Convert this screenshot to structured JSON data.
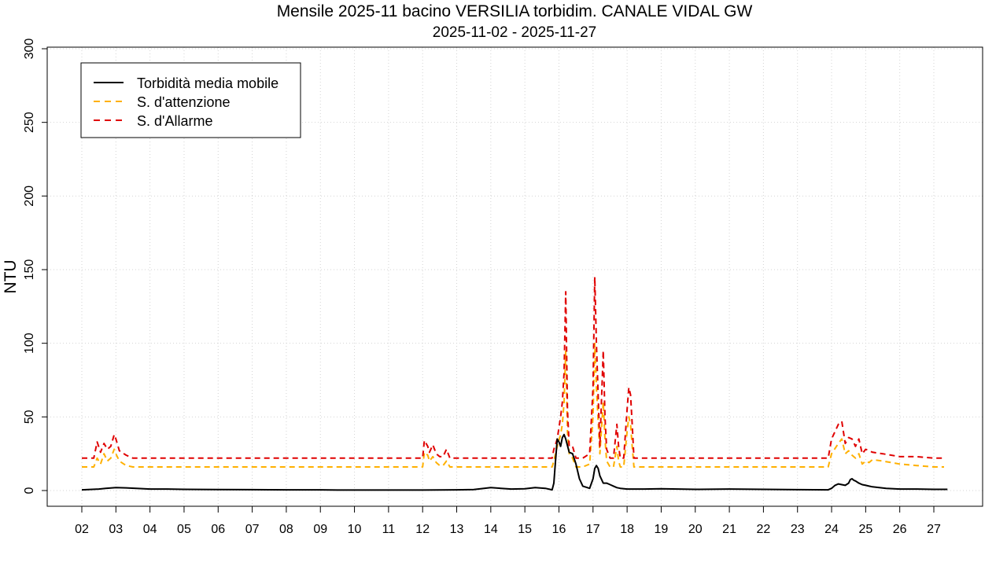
{
  "chart_data": {
    "type": "line",
    "title": "Mensile 2025-11 bacino VERSILIA torbidim. CANALE VIDAL GW",
    "subtitle": "2025-11-02 - 2025-11-27",
    "xlabel": "",
    "ylabel": "NTU",
    "ylim": [
      0,
      300
    ],
    "yticks": [
      0,
      50,
      100,
      150,
      200,
      250,
      300
    ],
    "x_unit": "day of month (2025-11)",
    "xlim": [
      2,
      27.3
    ],
    "xticks": [
      2,
      3,
      4,
      5,
      6,
      7,
      8,
      9,
      10,
      11,
      12,
      13,
      14,
      15,
      16,
      17,
      18,
      19,
      20,
      21,
      22,
      23,
      24,
      25,
      26,
      27
    ],
    "xtick_labels": [
      "02",
      "03",
      "04",
      "05",
      "06",
      "07",
      "08",
      "09",
      "10",
      "11",
      "12",
      "13",
      "14",
      "15",
      "16",
      "17",
      "18",
      "19",
      "20",
      "21",
      "22",
      "23",
      "24",
      "25",
      "26",
      "27"
    ],
    "grid": true,
    "legend_position": "top-left",
    "series": [
      {
        "name": "Torbidità media mobile",
        "color": "#000000",
        "dash": "solid",
        "x": [
          2.0,
          2.5,
          2.7,
          3.0,
          3.3,
          3.6,
          4.0,
          4.5,
          5.0,
          6.0,
          7.0,
          8.0,
          9.0,
          9.5,
          10.0,
          11.0,
          12.0,
          12.5,
          13.0,
          13.5,
          13.8,
          14.0,
          14.3,
          14.6,
          15.0,
          15.3,
          15.6,
          15.8,
          15.85,
          15.9,
          15.95,
          16.0,
          16.05,
          16.1,
          16.15,
          16.2,
          16.3,
          16.4,
          16.5,
          16.6,
          16.7,
          16.9,
          17.0,
          17.05,
          17.1,
          17.15,
          17.2,
          17.3,
          17.4,
          17.5,
          17.6,
          17.7,
          17.8,
          18.0,
          18.5,
          19.0,
          19.5,
          20.0,
          21.0,
          22.0,
          23.0,
          23.9,
          24.0,
          24.1,
          24.2,
          24.3,
          24.4,
          24.5,
          24.55,
          24.6,
          24.65,
          24.7,
          24.8,
          24.9,
          25.0,
          25.1,
          25.2,
          25.4,
          25.6,
          26.0,
          26.5,
          27.0,
          27.4
        ],
        "y": [
          0.5,
          1.0,
          1.5,
          2.0,
          1.8,
          1.5,
          1.0,
          1.0,
          0.8,
          0.7,
          0.6,
          0.5,
          0.5,
          0.3,
          0.3,
          0.3,
          0.3,
          0.4,
          0.5,
          0.7,
          1.5,
          2.0,
          1.5,
          1.0,
          1.2,
          2.0,
          1.5,
          0.5,
          5.0,
          20.0,
          35.0,
          33.0,
          30.0,
          36.0,
          38.0,
          35.0,
          26.0,
          25.0,
          18.0,
          8.0,
          3.0,
          1.5,
          8.0,
          15.0,
          17.0,
          15.0,
          10.0,
          5.0,
          5.0,
          4.0,
          3.0,
          2.0,
          1.5,
          1.0,
          1.0,
          1.2,
          1.0,
          0.8,
          1.0,
          0.8,
          0.6,
          0.5,
          1.5,
          3.5,
          4.5,
          4.0,
          3.5,
          5.0,
          7.5,
          8.0,
          7.0,
          6.5,
          5.0,
          4.0,
          3.5,
          3.0,
          2.5,
          2.0,
          1.5,
          1.0,
          1.0,
          0.8,
          0.8
        ]
      },
      {
        "name": "S. d'attenzione",
        "color": "#FFB000",
        "dash": "dashed",
        "x": [
          2.0,
          2.35,
          2.45,
          2.55,
          2.65,
          2.75,
          2.85,
          2.95,
          3.0,
          3.1,
          3.3,
          3.5,
          4.0,
          5.0,
          10.0,
          11.0,
          12.0,
          12.05,
          12.15,
          12.2,
          12.3,
          12.4,
          12.5,
          12.6,
          12.7,
          12.8,
          13.0,
          14.0,
          15.0,
          15.8,
          15.85,
          15.95,
          16.05,
          16.1,
          16.15,
          16.2,
          16.25,
          16.3,
          16.4,
          16.5,
          16.7,
          16.9,
          17.0,
          17.05,
          17.1,
          17.2,
          17.3,
          17.35,
          17.4,
          17.5,
          17.6,
          17.7,
          17.75,
          17.8,
          17.9,
          18.0,
          18.05,
          18.1,
          18.15,
          18.2,
          18.3,
          19.0,
          20.0,
          21.0,
          22.0,
          23.0,
          23.9,
          24.0,
          24.2,
          24.3,
          24.4,
          24.5,
          24.6,
          24.7,
          24.8,
          24.9,
          25.0,
          25.1,
          25.2,
          25.5,
          26.0,
          26.5,
          27.0,
          27.3
        ],
        "y": [
          16,
          16,
          22,
          18,
          25,
          20,
          22,
          28,
          25,
          20,
          17,
          16,
          16,
          16,
          16,
          16,
          16,
          26,
          24,
          20,
          23,
          19,
          17,
          17,
          20,
          16,
          16,
          16,
          16,
          16,
          20,
          30,
          38,
          45,
          60,
          95,
          40,
          25,
          22,
          16,
          16,
          18,
          50,
          100,
          70,
          25,
          60,
          35,
          20,
          16,
          16,
          30,
          20,
          16,
          16,
          40,
          50,
          45,
          30,
          16,
          16,
          16,
          16,
          16,
          16,
          16,
          16,
          25,
          32,
          35,
          25,
          27,
          24,
          22,
          25,
          18,
          20,
          19,
          21,
          20,
          18,
          17,
          16,
          16
        ]
      },
      {
        "name": "S. d'Allarme",
        "color": "#E00000",
        "dash": "dashed",
        "x": [
          2.0,
          2.35,
          2.45,
          2.55,
          2.65,
          2.75,
          2.85,
          2.95,
          3.0,
          3.1,
          3.3,
          3.5,
          4.0,
          5.0,
          10.0,
          11.0,
          12.0,
          12.05,
          12.15,
          12.2,
          12.3,
          12.4,
          12.5,
          12.6,
          12.7,
          12.8,
          13.0,
          14.0,
          15.0,
          15.8,
          15.85,
          15.95,
          16.05,
          16.1,
          16.15,
          16.2,
          16.25,
          16.3,
          16.4,
          16.5,
          16.7,
          16.9,
          17.0,
          17.05,
          17.1,
          17.2,
          17.3,
          17.35,
          17.4,
          17.5,
          17.6,
          17.7,
          17.75,
          17.8,
          17.9,
          18.0,
          18.05,
          18.1,
          18.15,
          18.2,
          18.3,
          19.0,
          20.0,
          21.0,
          22.0,
          23.0,
          23.9,
          24.0,
          24.2,
          24.3,
          24.4,
          24.5,
          24.6,
          24.7,
          24.8,
          24.9,
          25.0,
          25.1,
          25.2,
          25.5,
          26.0,
          26.5,
          27.0,
          27.3
        ],
        "y": [
          22,
          22,
          33,
          26,
          32,
          28,
          30,
          38,
          35,
          27,
          24,
          22,
          22,
          22,
          22,
          22,
          22,
          34,
          30,
          26,
          31,
          25,
          23,
          23,
          28,
          22,
          22,
          22,
          22,
          22,
          28,
          35,
          50,
          60,
          80,
          135,
          55,
          30,
          30,
          22,
          22,
          25,
          70,
          145,
          100,
          30,
          95,
          50,
          28,
          22,
          22,
          45,
          30,
          22,
          22,
          55,
          70,
          65,
          45,
          22,
          22,
          22,
          22,
          22,
          22,
          22,
          22,
          35,
          45,
          47,
          32,
          36,
          35,
          30,
          35,
          25,
          28,
          27,
          26,
          25,
          23,
          23,
          22,
          22
        ]
      }
    ]
  }
}
